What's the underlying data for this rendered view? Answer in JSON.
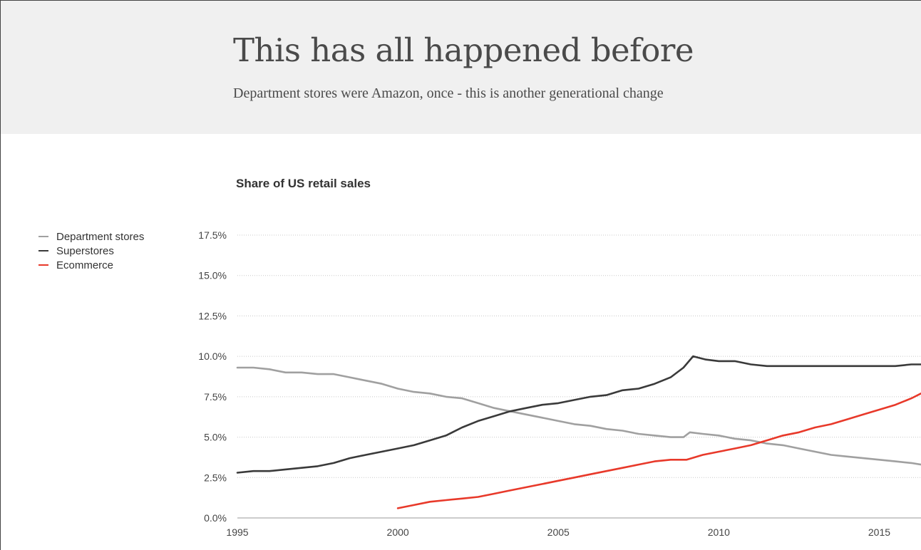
{
  "slide": {
    "title": "This has all happened before",
    "subtitle": "Department stores were Amazon, once - this is another generational change"
  },
  "colors": {
    "header_bg": "#f0f0f0",
    "department_stores": "#a0a0a0",
    "superstores": "#3a3a3a",
    "ecommerce": "#e8392a"
  },
  "chart_data": {
    "type": "line",
    "title": "Share of US retail sales",
    "xlabel": "",
    "ylabel": "",
    "xlim": [
      1995,
      2016.3
    ],
    "ylim": [
      0,
      17.5
    ],
    "x_ticks": [
      1995,
      2000,
      2005,
      2010,
      2015
    ],
    "y_ticks": [
      0,
      2.5,
      5.0,
      7.5,
      10.0,
      12.5,
      15.0,
      17.5
    ],
    "y_tick_labels": [
      "0.0%",
      "2.5%",
      "5.0%",
      "7.5%",
      "10.0%",
      "12.5%",
      "15.0%",
      "17.5%"
    ],
    "grid": "horizontal dotted",
    "legend_position": "left",
    "series": [
      {
        "name": "Department stores",
        "color": "#a0a0a0",
        "points": [
          [
            1995.0,
            9.3
          ],
          [
            1995.5,
            9.3
          ],
          [
            1996.0,
            9.2
          ],
          [
            1996.5,
            9.0
          ],
          [
            1997.0,
            9.0
          ],
          [
            1997.5,
            8.9
          ],
          [
            1998.0,
            8.9
          ],
          [
            1998.5,
            8.7
          ],
          [
            1999.0,
            8.5
          ],
          [
            1999.5,
            8.3
          ],
          [
            2000.0,
            8.0
          ],
          [
            2000.5,
            7.8
          ],
          [
            2001.0,
            7.7
          ],
          [
            2001.5,
            7.5
          ],
          [
            2002.0,
            7.4
          ],
          [
            2002.5,
            7.1
          ],
          [
            2003.0,
            6.8
          ],
          [
            2003.5,
            6.6
          ],
          [
            2004.0,
            6.4
          ],
          [
            2004.5,
            6.2
          ],
          [
            2005.0,
            6.0
          ],
          [
            2005.5,
            5.8
          ],
          [
            2006.0,
            5.7
          ],
          [
            2006.5,
            5.5
          ],
          [
            2007.0,
            5.4
          ],
          [
            2007.5,
            5.2
          ],
          [
            2008.0,
            5.1
          ],
          [
            2008.5,
            5.0
          ],
          [
            2008.9,
            5.0
          ],
          [
            2009.1,
            5.3
          ],
          [
            2009.5,
            5.2
          ],
          [
            2010.0,
            5.1
          ],
          [
            2010.5,
            4.9
          ],
          [
            2011.0,
            4.8
          ],
          [
            2011.5,
            4.6
          ],
          [
            2012.0,
            4.5
          ],
          [
            2012.5,
            4.3
          ],
          [
            2013.0,
            4.1
          ],
          [
            2013.5,
            3.9
          ],
          [
            2014.0,
            3.8
          ],
          [
            2014.5,
            3.7
          ],
          [
            2015.0,
            3.6
          ],
          [
            2015.5,
            3.5
          ],
          [
            2016.0,
            3.4
          ],
          [
            2016.3,
            3.3
          ]
        ]
      },
      {
        "name": "Superstores",
        "color": "#3a3a3a",
        "points": [
          [
            1995.0,
            2.8
          ],
          [
            1995.5,
            2.9
          ],
          [
            1996.0,
            2.9
          ],
          [
            1996.5,
            3.0
          ],
          [
            1997.0,
            3.1
          ],
          [
            1997.5,
            3.2
          ],
          [
            1998.0,
            3.4
          ],
          [
            1998.5,
            3.7
          ],
          [
            1999.0,
            3.9
          ],
          [
            1999.5,
            4.1
          ],
          [
            2000.0,
            4.3
          ],
          [
            2000.5,
            4.5
          ],
          [
            2001.0,
            4.8
          ],
          [
            2001.5,
            5.1
          ],
          [
            2002.0,
            5.6
          ],
          [
            2002.5,
            6.0
          ],
          [
            2003.0,
            6.3
          ],
          [
            2003.5,
            6.6
          ],
          [
            2004.0,
            6.8
          ],
          [
            2004.5,
            7.0
          ],
          [
            2005.0,
            7.1
          ],
          [
            2005.5,
            7.3
          ],
          [
            2006.0,
            7.5
          ],
          [
            2006.5,
            7.6
          ],
          [
            2007.0,
            7.9
          ],
          [
            2007.5,
            8.0
          ],
          [
            2008.0,
            8.3
          ],
          [
            2008.5,
            8.7
          ],
          [
            2008.9,
            9.3
          ],
          [
            2009.2,
            10.0
          ],
          [
            2009.6,
            9.8
          ],
          [
            2010.0,
            9.7
          ],
          [
            2010.5,
            9.7
          ],
          [
            2011.0,
            9.5
          ],
          [
            2011.5,
            9.4
          ],
          [
            2012.0,
            9.4
          ],
          [
            2012.5,
            9.4
          ],
          [
            2013.0,
            9.4
          ],
          [
            2013.5,
            9.4
          ],
          [
            2014.0,
            9.4
          ],
          [
            2014.5,
            9.4
          ],
          [
            2015.0,
            9.4
          ],
          [
            2015.5,
            9.4
          ],
          [
            2016.0,
            9.5
          ],
          [
            2016.3,
            9.5
          ]
        ]
      },
      {
        "name": "Ecommerce",
        "color": "#e8392a",
        "points": [
          [
            2000.0,
            0.6
          ],
          [
            2000.5,
            0.8
          ],
          [
            2001.0,
            1.0
          ],
          [
            2001.5,
            1.1
          ],
          [
            2002.0,
            1.2
          ],
          [
            2002.5,
            1.3
          ],
          [
            2003.0,
            1.5
          ],
          [
            2003.5,
            1.7
          ],
          [
            2004.0,
            1.9
          ],
          [
            2004.5,
            2.1
          ],
          [
            2005.0,
            2.3
          ],
          [
            2005.5,
            2.5
          ],
          [
            2006.0,
            2.7
          ],
          [
            2006.5,
            2.9
          ],
          [
            2007.0,
            3.1
          ],
          [
            2007.5,
            3.3
          ],
          [
            2008.0,
            3.5
          ],
          [
            2008.5,
            3.6
          ],
          [
            2009.0,
            3.6
          ],
          [
            2009.5,
            3.9
          ],
          [
            2010.0,
            4.1
          ],
          [
            2010.5,
            4.3
          ],
          [
            2011.0,
            4.5
          ],
          [
            2011.5,
            4.8
          ],
          [
            2012.0,
            5.1
          ],
          [
            2012.5,
            5.3
          ],
          [
            2013.0,
            5.6
          ],
          [
            2013.5,
            5.8
          ],
          [
            2014.0,
            6.1
          ],
          [
            2014.5,
            6.4
          ],
          [
            2015.0,
            6.7
          ],
          [
            2015.5,
            7.0
          ],
          [
            2016.0,
            7.4
          ],
          [
            2016.3,
            7.7
          ]
        ]
      }
    ]
  }
}
